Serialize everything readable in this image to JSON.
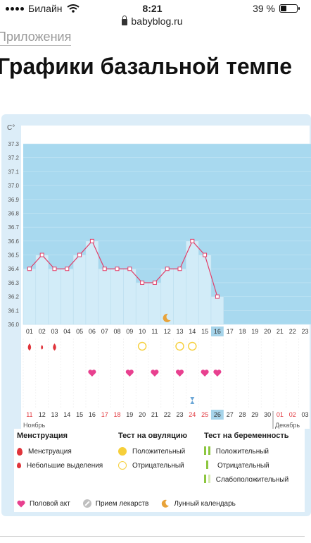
{
  "status_bar": {
    "carrier": "Билайн",
    "time": "8:21",
    "battery": "39 %",
    "battery_level": 0.39
  },
  "browser": {
    "url": "babyblog.ru"
  },
  "breadcrumb": "Приложения",
  "page_title": "Графики базальной темпе",
  "chart_data": {
    "type": "line",
    "ylabel": "С°",
    "ylim": [
      36.0,
      37.3
    ],
    "y_ticks": [
      "37.3",
      "37.2",
      "37.1",
      "37.0",
      "36.9",
      "36.8",
      "36.7",
      "36.6",
      "36.5",
      "36.4",
      "36.3",
      "36.2",
      "36.1",
      "36.0"
    ],
    "cycle_days": [
      "01",
      "02",
      "03",
      "04",
      "05",
      "06",
      "07",
      "08",
      "09",
      "10",
      "11",
      "12",
      "13",
      "14",
      "15",
      "16",
      "17",
      "18",
      "19",
      "20",
      "21",
      "22",
      "23"
    ],
    "current_day_index": 15,
    "series": [
      {
        "values": [
          36.4,
          36.5,
          36.4,
          36.4,
          36.5,
          36.6,
          36.4,
          36.4,
          36.4,
          36.3,
          36.3,
          36.4,
          36.4,
          36.6,
          36.5,
          36.2
        ]
      }
    ],
    "moon_day": "12",
    "menstruation_days": [
      "01",
      "03"
    ],
    "light_bleeding_days": [
      "02"
    ],
    "ovulation_negative_days": [
      "10",
      "13",
      "14"
    ],
    "intercourse_days": [
      "06",
      "09",
      "11",
      "13",
      "15",
      "16"
    ],
    "medication_day": "14",
    "calendar_dates": [
      "11",
      "12",
      "13",
      "14",
      "15",
      "16",
      "17",
      "18",
      "19",
      "20",
      "21",
      "22",
      "23",
      "24",
      "25",
      "26",
      "27",
      "28",
      "29",
      "30",
      "01",
      "02",
      "03"
    ],
    "weekend_dates": [
      "11",
      "17",
      "18",
      "24",
      "25",
      "01",
      "02"
    ],
    "month_start": "Ноябрь",
    "month_next": "Декабрь"
  },
  "legend": {
    "menstruation_title": "Менструация",
    "menstruation": "Менструация",
    "light_bleeding": "Небольшие выделения",
    "ovulation_title": "Тест на овуляцию",
    "ovulation_positive": "Положительный",
    "ovulation_negative": "Отрицательный",
    "pregnancy_title": "Тест на беременность",
    "pregnancy_positive": "Положительный",
    "pregnancy_negative": "Отрицательный",
    "pregnancy_weak": "Слабоположительный",
    "intercourse": "Половой акт",
    "medication": "Прием лекарств",
    "lunar": "Лунный календарь"
  },
  "colors": {
    "sky": "#a8d9ef",
    "bar_fill": "#d2ecf8",
    "line": "#e0406a",
    "heart": "#e8408f",
    "drop": "#e0343b",
    "moon": "#e8a33a",
    "highlight": "#a6d4ea",
    "weekend": "#e0343b"
  }
}
